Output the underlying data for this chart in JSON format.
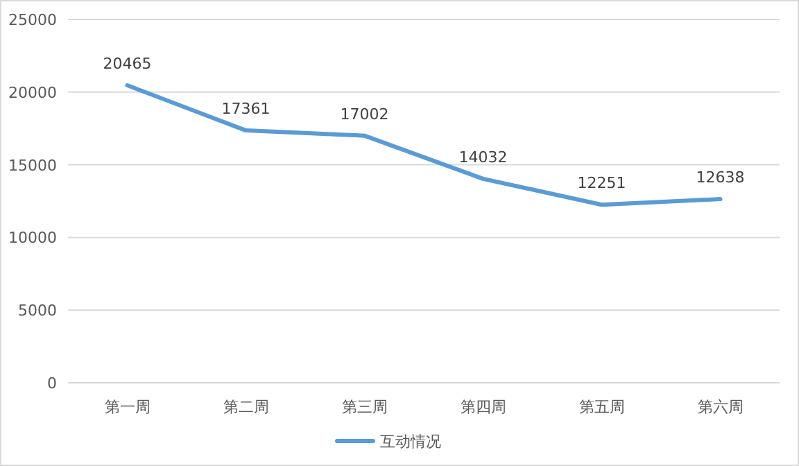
{
  "chart_data": {
    "type": "line",
    "categories": [
      "第一周",
      "第二周",
      "第三周",
      "第四周",
      "第五周",
      "第六周"
    ],
    "series": [
      {
        "name": "互动情况",
        "color": "#5b9bd5",
        "values": [
          20465,
          17361,
          17002,
          14032,
          12251,
          12638
        ]
      }
    ],
    "ylim": [
      0,
      25000
    ],
    "yticks": [
      0,
      5000,
      10000,
      15000,
      20000,
      25000
    ],
    "grid": "y",
    "legend": "bottom",
    "data_labels": true,
    "marker": "none",
    "line_style": "solid"
  }
}
